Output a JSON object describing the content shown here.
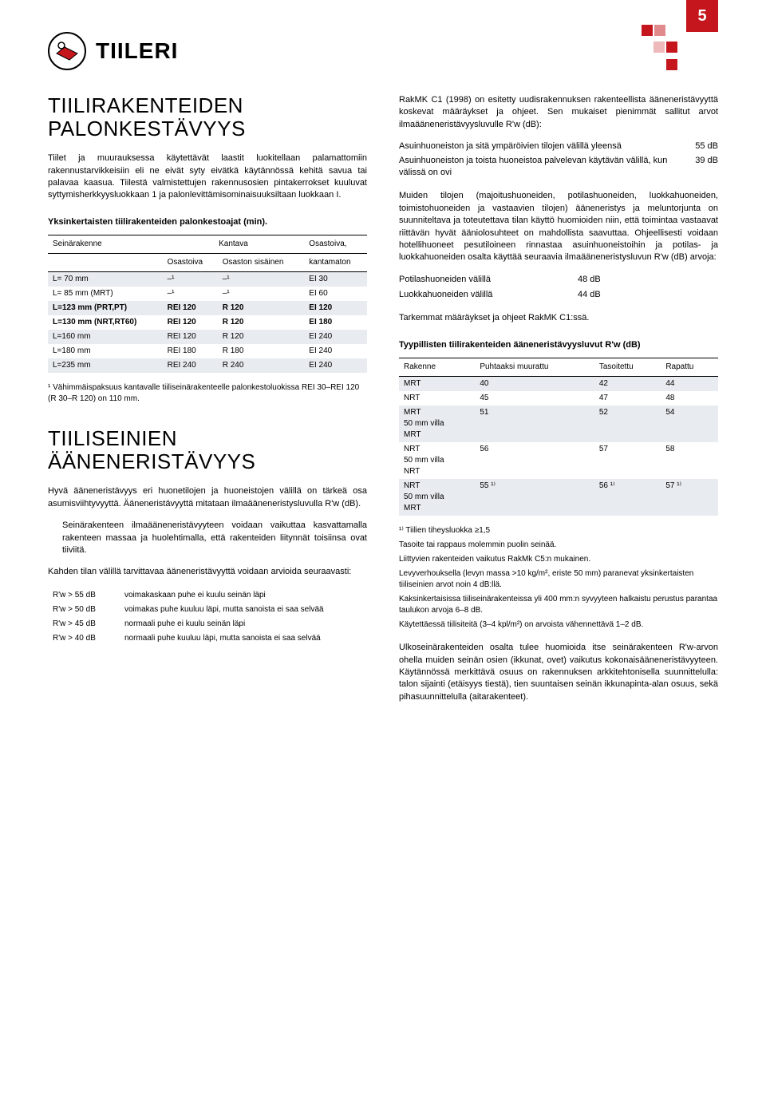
{
  "pageNumber": "5",
  "logo": {
    "text": "TIILERI"
  },
  "left": {
    "h1a": "TIILIRAKENTEIDEN",
    "h1b": "PALONKESTÄVYYS",
    "p1": "Tiilet ja muurauksessa käytettävät laastit luokitellaan palamatto­miin rakennustarvikkeisiin eli ne eivät syty eivätkä käytännössä kehitä savua tai palavaa kaasua. Tiilestä valmistettujen raken­nusosien pintakerrokset kuuluvat syttymisherkkyysluokkaan 1 ja palonlevittämisominaisuuksiltaan luokkaan I.",
    "tbl1Caption": "Yksinkertaisten tiilirakenteiden palonkestoajat (min).",
    "tbl1": {
      "head": [
        "Seinärakenne",
        "Kantava",
        "",
        "Osastoiva,"
      ],
      "head2": [
        "",
        "Osastoiva",
        "Osaston sisäinen",
        "kantamaton"
      ],
      "rows": [
        [
          "L= 70 mm",
          "–¹",
          "–¹",
          "EI 30"
        ],
        [
          "L= 85 mm (MRT)",
          "–¹",
          "–¹",
          "EI 60"
        ],
        [
          "L=123 mm (PRT,PT)",
          "REI 120",
          "R 120",
          "EI 120"
        ],
        [
          "L=130 mm (NRT,RT60)",
          "REI 120",
          "R 120",
          "EI 180"
        ],
        [
          "L=160 mm",
          "REI 120",
          "R 120",
          "EI 240"
        ],
        [
          "L=180 mm",
          "REI 180",
          "R 180",
          "EI 240"
        ],
        [
          "L=235 mm",
          "REI 240",
          "R 240",
          "EI 240"
        ]
      ]
    },
    "tbl1Note": "¹ Vähimmäispaksuus kantavalle tiiliseinärakenteelle palonkestoluokissa REI 30–REI 120 (R 30–R 120) on 110 mm.",
    "h2a": "TIILISEINIEN",
    "h2b": "ÄÄNENERISTÄVYYS",
    "p2": "Hyvä ääneneristävyys eri huonetilojen ja huoneistojen välillä on tärkeä osa asumisviihtyvyyttä. Ääneneristävyyttä mitataan ilmaääneneristysluvulla R'w (dB).",
    "p3": "Seinärakenteen ilmaääneneristävyyteen voidaan vaikuttaa kasvattamalla rakenteen massaa ja huolehtimalla, että rakentei­den liitynnät toisiinsa ovat tiiviitä.",
    "p4": "Kahden tilan välillä tarvittavaa ääneneristävyyttä voidaan arvi­oida seuraavasti:",
    "rwList": [
      [
        "R'w > 55 dB",
        "voimakaskaan puhe ei kuulu seinän läpi"
      ],
      [
        "R'w > 50 dB",
        "voimakas puhe kuuluu läpi, mutta sanoista ei saa selvää"
      ],
      [
        "R'w > 45 dB",
        "normaali puhe ei kuulu seinän läpi"
      ],
      [
        "R'w > 40 dB",
        "normaali puhe kuuluu läpi, mutta sanoista ei saa selvää"
      ]
    ]
  },
  "right": {
    "p1": "RakMK C1 (1998) on esitetty uudisrakennuksen rakenteellista ääneneristävyyttä koskevat määräykset ja ohjeet. Sen mukaiset pienimmät sallitut arvot ilmaääneneristävyysluvulle R'w (dB):",
    "lines": [
      [
        "Asuinhuoneiston ja sitä ympäröivien tilojen välillä yleensä",
        "55 dB"
      ],
      [
        "Asuinhuoneiston ja toista huoneistoa palvelevan käytävän välillä, kun välissä on ovi",
        "39 dB"
      ]
    ],
    "p2": "Muiden tilojen (majoitushuoneiden, potilashuoneiden, luokka­huoneiden, toimistohuoneiden ja vastaavien tilojen) ääneneristys ja meluntorjunta on suunniteltava ja toteutettava tilan käyttö huomioiden niin, että toimintaa vastaavat riittävän hyvät ääni­olosuhteet on mahdollista saavuttaa. Ohjeellisesti voidaan hotel­lihuoneet pesutiloineen rinnastaa asuinhuoneistoihin ja potilas- ja luokkahuoneiden osalta käyttää seuraavia ilmaääneneristysluvun R'w (dB) arvoja:",
    "stats": [
      [
        "Potilashuoneiden välillä",
        "48 dB"
      ],
      [
        "Luokkahuoneiden välillä",
        "44 dB"
      ]
    ],
    "p3": "Tarkemmat määräykset ja ohjeet RakMK C1:ssä.",
    "tbl2Caption": "Tyypillisten tiilirakenteiden ääneneristävyysluvut R'w (dB)",
    "tbl2": {
      "head": [
        "Rakenne",
        "Puhtaaksi muurattu",
        "Tasoitettu",
        "Rapattu"
      ],
      "rows": [
        [
          "MRT",
          "40",
          "42",
          "44"
        ],
        [
          "NRT",
          "45",
          "47",
          "48"
        ],
        [
          "MRT\n50 mm villa\nMRT",
          "51",
          "52",
          "54"
        ],
        [
          "NRT\n50 mm villa\nNRT",
          "56",
          "57",
          "58"
        ],
        [
          "NRT\n50 mm villa\nMRT",
          "55 ¹⁾",
          "56 ¹⁾",
          "57 ¹⁾"
        ]
      ]
    },
    "footnotes": [
      "¹⁾ Tiilien tiheysluokka ≥1,5",
      "Tasoite tai rappaus molemmin puolin seinää.",
      "Liittyvien rakenteiden vaikutus RakMk C5:n mukainen.",
      "Levyverhouksella (levyn massa >10 kg/m², eriste 50 mm) paranevat yksinkertaisten tiiliseinien arvot noin 4 dB:llä.",
      "Kaksinkertaisissa tiiliseinärakenteissa yli 400 mm:n syvyyteen halkaistu perustus parantaa taulukon arvoja 6–8 dB.",
      "Käytettäessä tiilisiteitä (3–4 kpl/m²) on arvoista vähennettävä 1–2 dB."
    ],
    "p4": "Ulkoseinärakenteiden osalta tulee huomioida itse seinärakenteen R'w-arvon ohella muiden seinän osien (ikkunat, ovet) vaikutus kokonaisääneneristävyyteen. Käytännössä merkittävä osuus on rakennuksen arkkitehtonisella suunnittelulla: talon sijainti (etäisyys tiestä), tien suuntaisen seinän ikkunapinta-alan osuus, sekä piha­suunnittelulla (aitarakenteet)."
  }
}
